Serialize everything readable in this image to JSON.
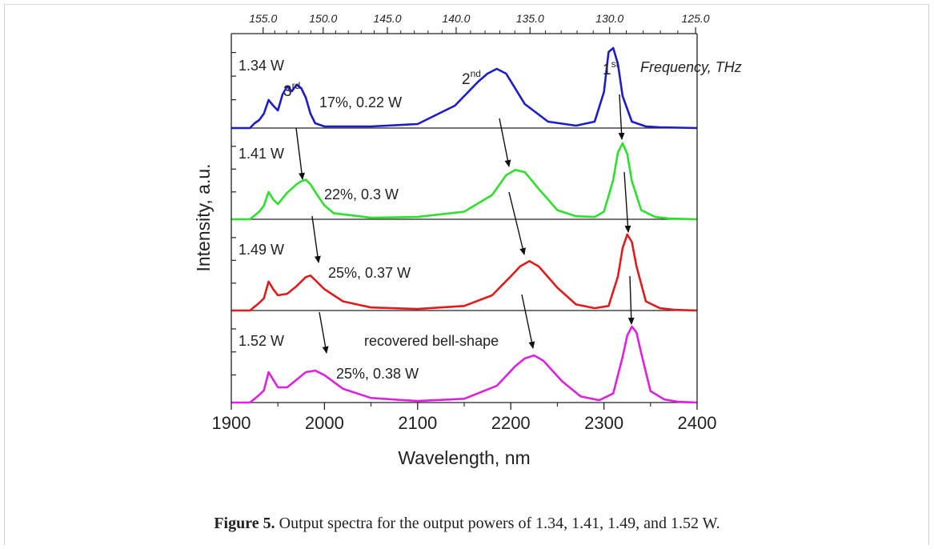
{
  "figure": {
    "caption_label": "Figure 5.",
    "caption_text": " Output spectra for the output powers of 1.34, 1.41, 1.49, and 1.52 W."
  },
  "chart_data": {
    "type": "line",
    "xlabel": "Wavelength, nm",
    "ylabel": "Intensity, a.u.",
    "xlim": [
      1900,
      2400
    ],
    "x_ticks": [
      1900,
      2000,
      2100,
      2200,
      2300,
      2400
    ],
    "top_axis": {
      "label": "Frequency, THz",
      "ticks": [
        "155.0",
        "150.0",
        "145.0",
        "140.0",
        "135.0",
        "130.0",
        "125.0"
      ],
      "tick_values": [
        155,
        150,
        145,
        140,
        135,
        130,
        125
      ]
    },
    "panels": [
      {
        "power_label": "1.34 W",
        "color": "#1c1ccc",
        "annotation": "17%, 0.22 W",
        "x": [
          1900,
          1920,
          1925,
          1930,
          1935,
          1940,
          1945,
          1950,
          1955,
          1960,
          1965,
          1970,
          1975,
          1980,
          1985,
          1990,
          2000,
          2050,
          2100,
          2140,
          2165,
          2175,
          2185,
          2195,
          2215,
          2240,
          2270,
          2290,
          2300,
          2305,
          2310,
          2315,
          2320,
          2330,
          2345,
          2360,
          2400
        ],
        "y": [
          0.0,
          0.0,
          0.06,
          0.1,
          0.18,
          0.35,
          0.28,
          0.22,
          0.42,
          0.52,
          0.46,
          0.54,
          0.5,
          0.38,
          0.18,
          0.06,
          0.02,
          0.02,
          0.05,
          0.28,
          0.58,
          0.68,
          0.74,
          0.68,
          0.3,
          0.08,
          0.03,
          0.08,
          0.45,
          0.95,
          1.0,
          0.8,
          0.4,
          0.08,
          0.02,
          0.01,
          0.0
        ]
      },
      {
        "power_label": "1.41 W",
        "color": "#2ce02c",
        "annotation": "22%, 0.3 W",
        "x": [
          1900,
          1920,
          1925,
          1930,
          1935,
          1940,
          1945,
          1950,
          1960,
          1970,
          1975,
          1980,
          1985,
          1990,
          2000,
          2010,
          2050,
          2100,
          2150,
          2180,
          2195,
          2205,
          2215,
          2230,
          2250,
          2270,
          2290,
          2300,
          2310,
          2315,
          2320,
          2325,
          2330,
          2340,
          2355,
          2370,
          2400
        ],
        "y": [
          0.0,
          0.0,
          0.05,
          0.1,
          0.18,
          0.36,
          0.26,
          0.2,
          0.35,
          0.46,
          0.5,
          0.52,
          0.46,
          0.36,
          0.18,
          0.08,
          0.02,
          0.03,
          0.1,
          0.32,
          0.58,
          0.65,
          0.62,
          0.4,
          0.12,
          0.04,
          0.03,
          0.1,
          0.52,
          0.88,
          1.0,
          0.86,
          0.5,
          0.12,
          0.03,
          0.01,
          0.0
        ]
      },
      {
        "power_label": "1.49 W",
        "color": "#e01b1b",
        "annotation": "25%, 0.37 W",
        "x": [
          1900,
          1920,
          1925,
          1930,
          1935,
          1940,
          1945,
          1950,
          1960,
          1970,
          1980,
          1985,
          1990,
          2000,
          2020,
          2050,
          2100,
          2150,
          2180,
          2200,
          2210,
          2220,
          2230,
          2250,
          2270,
          2290,
          2305,
          2315,
          2320,
          2325,
          2330,
          2335,
          2345,
          2360,
          2375,
          2400
        ],
        "y": [
          0.0,
          0.0,
          0.05,
          0.1,
          0.16,
          0.38,
          0.28,
          0.2,
          0.22,
          0.32,
          0.44,
          0.46,
          0.4,
          0.28,
          0.12,
          0.04,
          0.02,
          0.06,
          0.2,
          0.45,
          0.58,
          0.65,
          0.58,
          0.3,
          0.08,
          0.03,
          0.06,
          0.45,
          0.82,
          1.0,
          0.9,
          0.58,
          0.12,
          0.03,
          0.01,
          0.0
        ]
      },
      {
        "power_label": "1.52 W",
        "color": "#e020e0",
        "annotation": "25%, 0.38 W",
        "x": [
          1900,
          1920,
          1925,
          1930,
          1935,
          1940,
          1945,
          1950,
          1960,
          1970,
          1980,
          1990,
          2000,
          2020,
          2050,
          2100,
          2150,
          2185,
          2205,
          2215,
          2225,
          2235,
          2255,
          2275,
          2295,
          2310,
          2320,
          2325,
          2330,
          2335,
          2340,
          2350,
          2365,
          2380,
          2400
        ],
        "y": [
          0.0,
          0.0,
          0.05,
          0.1,
          0.16,
          0.4,
          0.3,
          0.2,
          0.2,
          0.3,
          0.4,
          0.42,
          0.36,
          0.18,
          0.06,
          0.02,
          0.05,
          0.22,
          0.48,
          0.58,
          0.62,
          0.55,
          0.28,
          0.08,
          0.03,
          0.12,
          0.6,
          0.88,
          1.0,
          0.92,
          0.65,
          0.15,
          0.04,
          0.01,
          0.0
        ]
      }
    ],
    "peak_labels": [
      {
        "base": "3",
        "sup": "rd"
      },
      {
        "base": "2",
        "sup": "nd"
      },
      {
        "base": "1",
        "sup": "st"
      }
    ],
    "bell_shape_label": "recovered bell-shape"
  }
}
